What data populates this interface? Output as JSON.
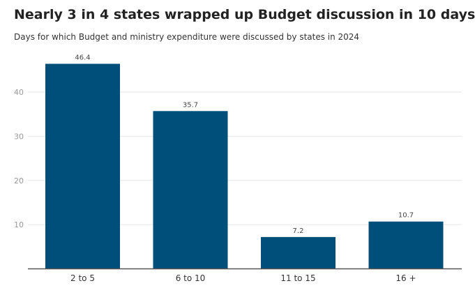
{
  "header": {
    "title": "Nearly 3 in 4 states wrapped up Budget discussion in 10 days",
    "subtitle": "Days for which Budget and ministry expenditure were discussed by states in 2024"
  },
  "colors": {
    "bar": "#004e7a",
    "grid": "#e6e6e6",
    "axis": "#555555"
  },
  "chart_data": {
    "type": "bar",
    "title": "Nearly 3 in 4 states wrapped up Budget discussion in 10 days",
    "subtitle": "Days for which Budget and ministry expenditure were discussed by states in 2024",
    "categories": [
      "2 to 5",
      "6 to 10",
      "11 to 15",
      "16 +"
    ],
    "values": [
      46.4,
      35.7,
      7.2,
      10.7
    ],
    "data_labels": [
      "46.4",
      "35.7",
      "7.2",
      "10.7"
    ],
    "xlabel": "",
    "ylabel": "",
    "ylim": [
      0,
      46.4
    ],
    "yticks": [
      10,
      20,
      30,
      40
    ],
    "grid": true,
    "legend": "none"
  }
}
